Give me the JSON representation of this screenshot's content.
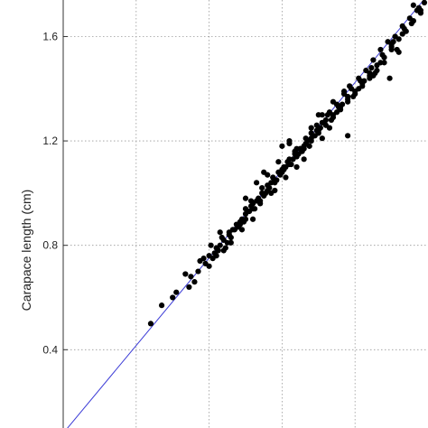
{
  "chart_data": {
    "type": "scatter",
    "title": "",
    "xlabel": "",
    "ylabel": "Carapace length (cm)",
    "y_ticks": [
      0.4,
      0.8,
      1.2,
      1.6
    ],
    "y_tick_labels": [
      "0.4",
      "0.8",
      "1.2",
      "1.6"
    ],
    "ylim": [
      0.1,
      1.74
    ],
    "xlim": [
      0,
      10
    ],
    "grid": true,
    "legend": "none",
    "colors": {
      "points": "#000000",
      "fit_line": "#3b3bd6",
      "grid": "#9a9a9a"
    },
    "fit_line": {
      "x": [
        0.0,
        10.0
      ],
      "y": [
        0.08,
        1.76
      ]
    },
    "series": [
      {
        "x": [
          2.4,
          2.7,
          3.1,
          3.45,
          3.75,
          4.0,
          4.2,
          4.4,
          4.55,
          4.7,
          4.85,
          5.0,
          5.15,
          5.3,
          5.45,
          5.6,
          5.75,
          5.9,
          6.05,
          6.2,
          6.35,
          6.5,
          6.65,
          6.8,
          6.95,
          7.1,
          7.3,
          7.5,
          7.7,
          7.9,
          8.1,
          8.3,
          8.5,
          8.7,
          8.9,
          9.1,
          9.3,
          9.5,
          9.7,
          9.9,
          3.0,
          3.5,
          3.9,
          4.1,
          4.3,
          4.45,
          4.6,
          4.75,
          4.9,
          5.05,
          5.2,
          5.35,
          5.5,
          5.65,
          5.8,
          5.95,
          6.1,
          6.25,
          6.4,
          6.55,
          6.7,
          6.85,
          7.0,
          7.15,
          7.4,
          7.6,
          7.8,
          8.0,
          8.2,
          8.4,
          8.6,
          8.8,
          9.0,
          9.2,
          9.4,
          9.6,
          9.8,
          4.0,
          4.4,
          4.8,
          5.2,
          5.6,
          6.0,
          6.4,
          6.8,
          7.2,
          7.6,
          8.0,
          8.4,
          8.8,
          4.2,
          4.6,
          5.0,
          5.4,
          5.8,
          6.2,
          6.6,
          7.0,
          7.4,
          7.8,
          8.2,
          8.6,
          9.0,
          3.7,
          4.15,
          4.5,
          4.95,
          5.25,
          5.55,
          5.85,
          6.15,
          6.45,
          6.75,
          7.05,
          7.35,
          7.65,
          7.95,
          8.25,
          8.55,
          4.05,
          4.35,
          4.65,
          5.1,
          5.4,
          5.7,
          6.0,
          6.3,
          6.6,
          6.9,
          7.2,
          7.5,
          7.8,
          8.1,
          8.4,
          8.7,
          9.0,
          9.3,
          9.55,
          9.8,
          5.0,
          5.3,
          5.6,
          5.9,
          6.2,
          6.5,
          6.8,
          7.1,
          7.4,
          7.7,
          3.35,
          3.85,
          4.25,
          4.55,
          4.85,
          5.15,
          5.45,
          5.75,
          6.05,
          6.35,
          6.65,
          6.95,
          7.25,
          7.55,
          7.85,
          8.15,
          8.45,
          8.75,
          9.05,
          9.35,
          5.5,
          6.0,
          6.2,
          6.4,
          5.2,
          5.8,
          6.6,
          7.0,
          4.9,
          5.5,
          6.1,
          6.8,
          7.3,
          3.6,
          4.3,
          5.0,
          5.7,
          6.4,
          7.1,
          7.8,
          8.5,
          9.2,
          9.6,
          9.75,
          8.95,
          9.15
        ],
        "y": [
          0.5,
          0.57,
          0.62,
          0.64,
          0.74,
          0.76,
          0.79,
          0.82,
          0.84,
          0.86,
          0.88,
          0.92,
          0.95,
          0.97,
          1.0,
          1.03,
          1.06,
          1.08,
          1.1,
          1.13,
          1.15,
          1.17,
          1.21,
          1.23,
          1.26,
          1.27,
          1.31,
          1.34,
          1.38,
          1.4,
          1.44,
          1.47,
          1.51,
          1.55,
          1.58,
          1.6,
          1.64,
          1.67,
          1.7,
          1.73,
          0.6,
          0.68,
          0.73,
          0.75,
          0.8,
          0.79,
          0.83,
          0.88,
          0.9,
          0.93,
          0.96,
          0.98,
          0.99,
          1.02,
          1.04,
          1.07,
          1.1,
          1.11,
          1.14,
          1.16,
          1.2,
          1.22,
          1.24,
          1.27,
          1.3,
          1.33,
          1.35,
          1.39,
          1.42,
          1.45,
          1.49,
          1.52,
          1.56,
          1.59,
          1.62,
          1.66,
          1.69,
          0.72,
          0.78,
          0.87,
          0.94,
          1.01,
          1.08,
          1.14,
          1.2,
          1.26,
          1.32,
          1.38,
          1.44,
          1.5,
          0.76,
          0.81,
          0.9,
          0.96,
          1.05,
          1.11,
          1.17,
          1.23,
          1.29,
          1.36,
          1.41,
          1.47,
          1.55,
          0.7,
          0.77,
          0.81,
          0.89,
          0.94,
          1.0,
          1.05,
          1.12,
          1.15,
          1.18,
          1.25,
          1.28,
          1.34,
          1.37,
          1.43,
          1.46,
          0.8,
          0.83,
          0.86,
          0.93,
          0.97,
          1.04,
          1.09,
          1.13,
          1.18,
          1.22,
          1.28,
          1.31,
          1.37,
          1.4,
          1.46,
          1.5,
          1.57,
          1.61,
          1.65,
          1.7,
          0.98,
          1.04,
          1.07,
          1.12,
          1.19,
          1.17,
          1.25,
          1.3,
          1.35,
          1.39,
          0.69,
          0.75,
          0.78,
          0.85,
          0.89,
          0.97,
          1.02,
          1.06,
          1.09,
          1.16,
          1.19,
          1.24,
          1.3,
          1.33,
          1.41,
          1.43,
          1.48,
          1.53,
          1.58,
          1.63,
          1.08,
          1.18,
          1.2,
          1.17,
          0.9,
          1.01,
          1.13,
          1.3,
          0.86,
          0.99,
          1.06,
          1.21,
          1.25,
          0.66,
          0.85,
          0.94,
          1.0,
          1.1,
          1.21,
          1.22,
          1.45,
          1.54,
          1.72,
          1.71,
          1.44,
          1.55
        ]
      }
    ]
  }
}
